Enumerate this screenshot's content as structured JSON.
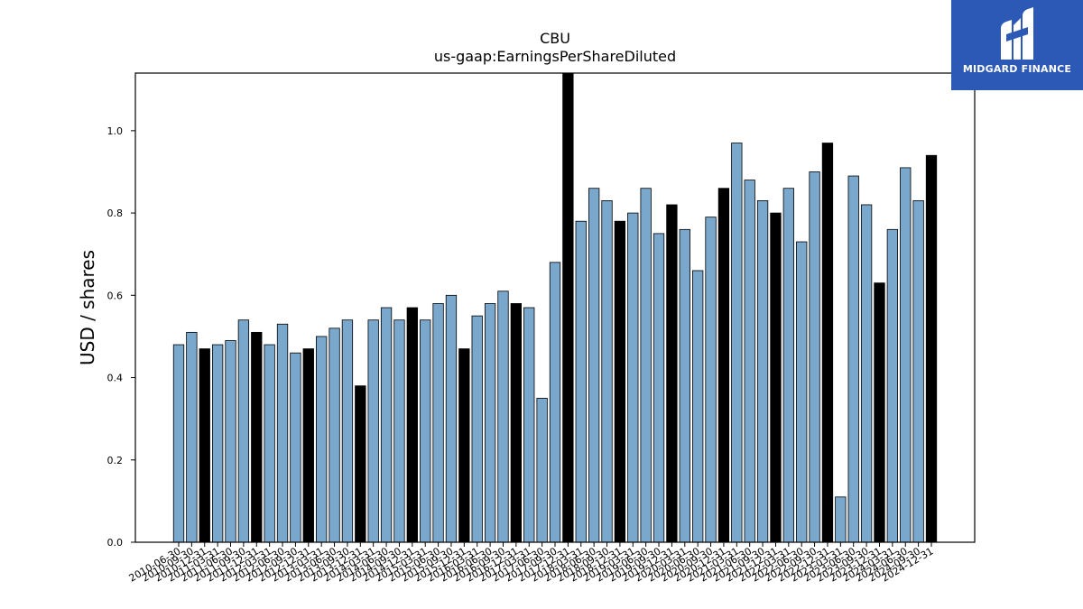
{
  "chart_data": {
    "type": "bar",
    "title": "CBU",
    "subtitle": "us-gaap:EarningsPerShareDiluted",
    "ylabel": "USD / shares",
    "xlabel": "",
    "ylim": [
      0,
      1.14
    ],
    "yticks": [
      0.0,
      0.2,
      0.4,
      0.6,
      0.8,
      1.0
    ],
    "ytick_labels": [
      "0.0",
      "0.2",
      "0.4",
      "0.6",
      "0.8",
      "1.0"
    ],
    "grid": false,
    "colors": {
      "quarter": "#7aa7cc",
      "annual": "#000000",
      "edge": "#000000"
    },
    "bars": [
      {
        "label": "2010-06-30",
        "value": 0.48,
        "kind": "quarter"
      },
      {
        "label": "2010-09-30",
        "value": 0.51,
        "kind": "quarter"
      },
      {
        "label": "2010-12-31",
        "value": 0.47,
        "kind": "annual"
      },
      {
        "label": "2011-03-31",
        "value": 0.48,
        "kind": "quarter"
      },
      {
        "label": "2011-06-30",
        "value": 0.49,
        "kind": "quarter"
      },
      {
        "label": "2011-09-30",
        "value": 0.54,
        "kind": "quarter"
      },
      {
        "label": "2011-12-31",
        "value": 0.51,
        "kind": "annual"
      },
      {
        "label": "2012-03-31",
        "value": 0.48,
        "kind": "quarter"
      },
      {
        "label": "2012-06-30",
        "value": 0.53,
        "kind": "quarter"
      },
      {
        "label": "2012-09-30",
        "value": 0.46,
        "kind": "quarter"
      },
      {
        "label": "2012-12-31",
        "value": 0.47,
        "kind": "annual"
      },
      {
        "label": "2013-03-31",
        "value": 0.5,
        "kind": "quarter"
      },
      {
        "label": "2013-06-30",
        "value": 0.52,
        "kind": "quarter"
      },
      {
        "label": "2013-09-30",
        "value": 0.54,
        "kind": "quarter"
      },
      {
        "label": "2013-12-31",
        "value": 0.38,
        "kind": "annual"
      },
      {
        "label": "2014-03-31",
        "value": 0.54,
        "kind": "quarter"
      },
      {
        "label": "2014-06-30",
        "value": 0.57,
        "kind": "quarter"
      },
      {
        "label": "2014-09-30",
        "value": 0.54,
        "kind": "quarter"
      },
      {
        "label": "2014-12-31",
        "value": 0.57,
        "kind": "annual"
      },
      {
        "label": "2015-03-31",
        "value": 0.54,
        "kind": "quarter"
      },
      {
        "label": "2015-06-30",
        "value": 0.58,
        "kind": "quarter"
      },
      {
        "label": "2015-09-30",
        "value": 0.6,
        "kind": "quarter"
      },
      {
        "label": "2015-12-31",
        "value": 0.47,
        "kind": "annual"
      },
      {
        "label": "2016-03-31",
        "value": 0.55,
        "kind": "quarter"
      },
      {
        "label": "2016-06-30",
        "value": 0.58,
        "kind": "quarter"
      },
      {
        "label": "2016-09-30",
        "value": 0.61,
        "kind": "quarter"
      },
      {
        "label": "2016-12-31",
        "value": 0.58,
        "kind": "annual"
      },
      {
        "label": "2017-03-31",
        "value": 0.57,
        "kind": "quarter"
      },
      {
        "label": "2017-06-30",
        "value": 0.35,
        "kind": "quarter"
      },
      {
        "label": "2017-09-30",
        "value": 0.68,
        "kind": "quarter"
      },
      {
        "label": "2017-12-31",
        "value": 1.14,
        "kind": "annual"
      },
      {
        "label": "2018-03-31",
        "value": 0.78,
        "kind": "quarter"
      },
      {
        "label": "2018-06-30",
        "value": 0.86,
        "kind": "quarter"
      },
      {
        "label": "2018-09-30",
        "value": 0.83,
        "kind": "quarter"
      },
      {
        "label": "2018-12-31",
        "value": 0.78,
        "kind": "annual"
      },
      {
        "label": "2019-03-31",
        "value": 0.8,
        "kind": "quarter"
      },
      {
        "label": "2019-06-30",
        "value": 0.86,
        "kind": "quarter"
      },
      {
        "label": "2019-09-30",
        "value": 0.75,
        "kind": "quarter"
      },
      {
        "label": "2019-12-31",
        "value": 0.82,
        "kind": "annual"
      },
      {
        "label": "2020-03-31",
        "value": 0.76,
        "kind": "quarter"
      },
      {
        "label": "2020-06-30",
        "value": 0.66,
        "kind": "quarter"
      },
      {
        "label": "2020-09-30",
        "value": 0.79,
        "kind": "quarter"
      },
      {
        "label": "2020-12-31",
        "value": 0.86,
        "kind": "annual"
      },
      {
        "label": "2021-03-31",
        "value": 0.97,
        "kind": "quarter"
      },
      {
        "label": "2021-06-30",
        "value": 0.88,
        "kind": "quarter"
      },
      {
        "label": "2021-09-30",
        "value": 0.83,
        "kind": "quarter"
      },
      {
        "label": "2021-12-31",
        "value": 0.8,
        "kind": "annual"
      },
      {
        "label": "2022-03-31",
        "value": 0.86,
        "kind": "quarter"
      },
      {
        "label": "2022-06-30",
        "value": 0.73,
        "kind": "quarter"
      },
      {
        "label": "2022-09-30",
        "value": 0.9,
        "kind": "quarter"
      },
      {
        "label": "2022-12-31",
        "value": 0.97,
        "kind": "annual"
      },
      {
        "label": "2023-03-31",
        "value": 0.11,
        "kind": "quarter"
      },
      {
        "label": "2023-06-30",
        "value": 0.89,
        "kind": "quarter"
      },
      {
        "label": "2023-09-30",
        "value": 0.82,
        "kind": "quarter"
      },
      {
        "label": "2023-12-31",
        "value": 0.63,
        "kind": "annual"
      },
      {
        "label": "2024-03-31",
        "value": 0.76,
        "kind": "quarter"
      },
      {
        "label": "2024-06-30",
        "value": 0.91,
        "kind": "quarter"
      },
      {
        "label": "2024-09-30",
        "value": 0.83,
        "kind": "quarter"
      },
      {
        "label": "2024-12-31",
        "value": 0.94,
        "kind": "annual"
      }
    ]
  },
  "logo": {
    "text": "MIDGARD FINANCE",
    "background": "#2b59b5",
    "icon": "midgard-logo-icon"
  }
}
